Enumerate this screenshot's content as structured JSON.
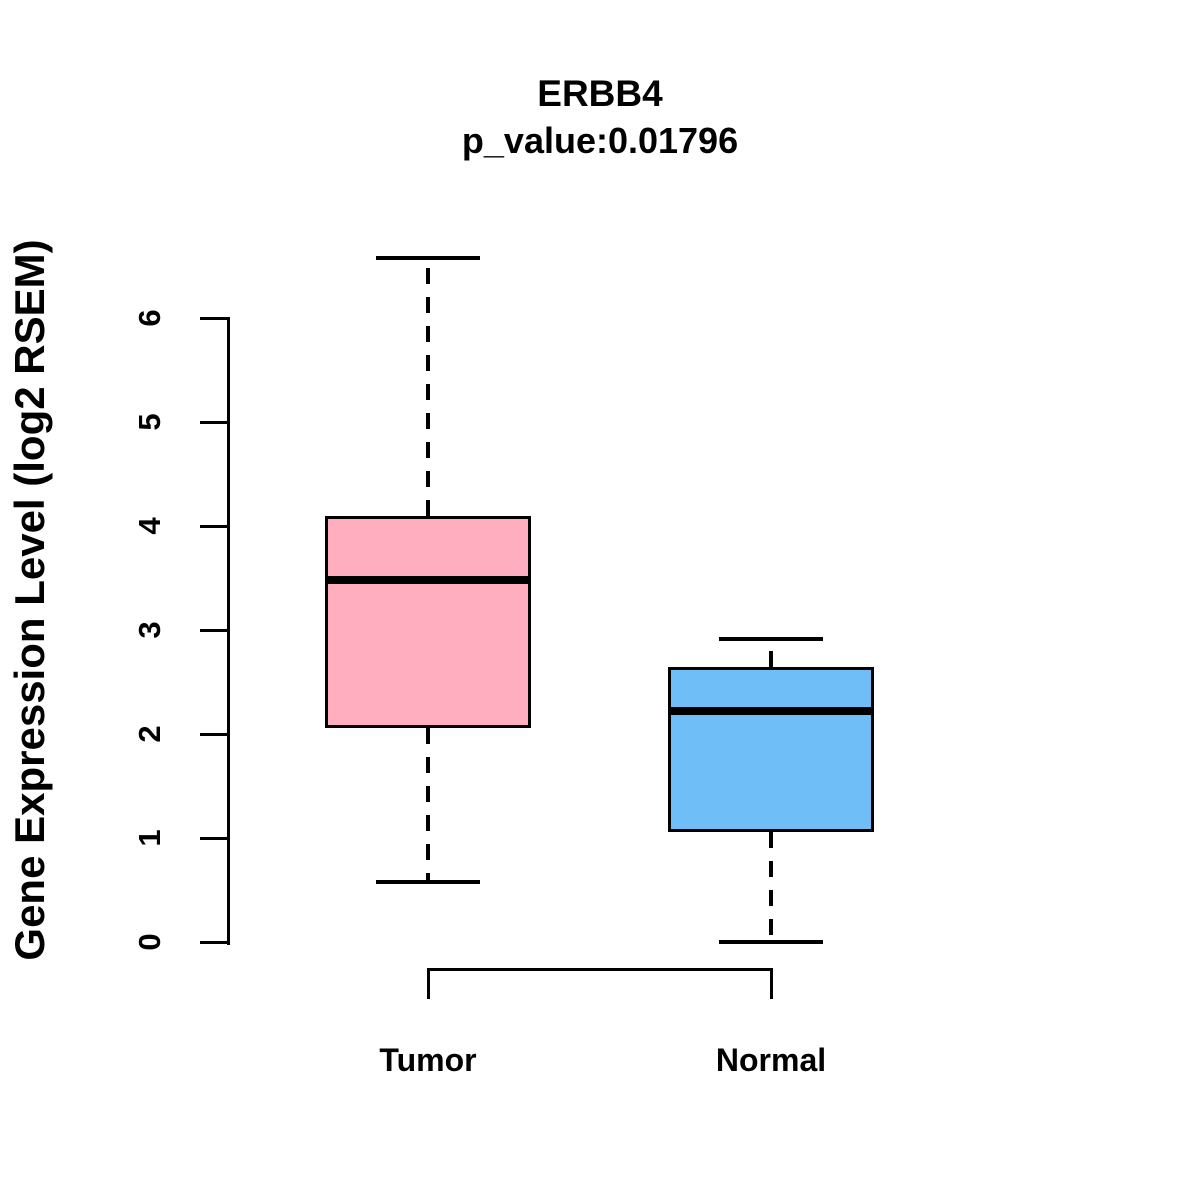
{
  "figure": {
    "title": "ERBB4",
    "subtitle": "p_value:0.01796",
    "ylabel": "Gene Expression Level (log2 RSEM)"
  },
  "chart_data": {
    "type": "boxplot",
    "title": "ERBB4",
    "subtitle": "p_value:0.01796",
    "xlabel": "",
    "ylabel": "Gene Expression Level (log2 RSEM)",
    "categories": [
      "Tumor",
      "Normal"
    ],
    "yaxis": {
      "ticks": [
        0,
        1,
        2,
        3,
        4,
        5,
        6
      ],
      "range": [
        0,
        6.6
      ],
      "grid": false
    },
    "series": [
      {
        "name": "Tumor",
        "color": "#FFAEC0",
        "min": 0.58,
        "q1": 2.06,
        "median": 3.48,
        "q3": 4.1,
        "max": 6.58,
        "outliers": []
      },
      {
        "name": "Normal",
        "color": "#70BEF8",
        "min": 0.0,
        "q1": 1.06,
        "median": 2.22,
        "q3": 2.64,
        "max": 2.91,
        "outliers": []
      }
    ],
    "comparison_bracket": {
      "between": [
        "Tumor",
        "Normal"
      ],
      "position": "below-axis"
    },
    "line_color": "#000000",
    "background_color": "#FFFFFF",
    "legend": "none"
  }
}
